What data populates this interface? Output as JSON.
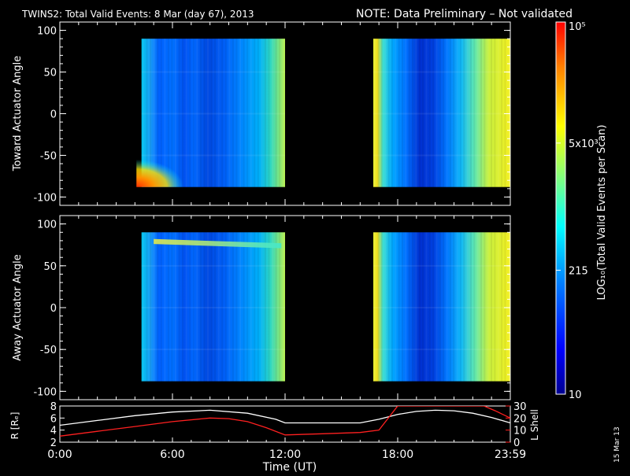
{
  "title": {
    "main": "TWINS2: Total Valid Events:  8 Mar (day  67), 2013",
    "note": "NOTE: Data Preliminary – Not validated",
    "note_color": "#ff2020"
  },
  "footer": {
    "date_stamp": "15 Mar 13"
  },
  "chart_data": [
    {
      "type": "heatmap",
      "name": "toward",
      "ylabel": "Toward Actuator Angle",
      "ylim": [
        -110,
        110
      ],
      "yticks": [
        -100,
        -50,
        0,
        50,
        100
      ],
      "xlim": [
        0,
        24
      ],
      "data_segments": [
        {
          "start_h": 4.35,
          "end_h": 12.0,
          "angle_range": [
            -88,
            90
          ]
        },
        {
          "start_h": 16.7,
          "end_h": 24.0,
          "angle_range": [
            -88,
            90
          ]
        }
      ],
      "features": [
        {
          "kind": "hot-corner",
          "near_h": 4.5,
          "near_angle": -85,
          "level": "high"
        }
      ]
    },
    {
      "type": "heatmap",
      "name": "away",
      "ylabel": "Away Actuator Angle",
      "ylim": [
        -110,
        110
      ],
      "yticks": [
        -100,
        -50,
        0,
        50,
        100
      ],
      "xlim": [
        0,
        24
      ],
      "data_segments": [
        {
          "start_h": 4.35,
          "end_h": 12.0,
          "angle_range": [
            -88,
            90
          ]
        },
        {
          "start_h": 16.7,
          "end_h": 24.0,
          "angle_range": [
            -88,
            90
          ]
        }
      ],
      "features": [
        {
          "kind": "band",
          "from_h": 5.0,
          "to_h": 11.8,
          "angle_from": 82,
          "angle_to": 75,
          "level": "medium-high"
        }
      ]
    },
    {
      "type": "line",
      "name": "orbit",
      "ylabel_left": "R [Rₑ]",
      "ylabel_right": "L Shell",
      "right_axis_color": "#ff2020",
      "ylim_left": [
        2,
        8
      ],
      "yticks_left": [
        2,
        4,
        6,
        8
      ],
      "ylim_right": [
        0,
        30
      ],
      "yticks_right": [
        0,
        10,
        20,
        30
      ],
      "series": [
        {
          "axis": "left",
          "color": "#ffffff",
          "x": [
            0,
            2,
            4,
            6,
            8,
            10,
            11.5,
            12,
            13,
            14,
            15,
            16,
            17,
            18,
            19,
            20,
            21,
            22,
            23,
            24
          ],
          "y": [
            4.8,
            5.6,
            6.4,
            7.0,
            7.3,
            6.8,
            5.8,
            5.2,
            5.2,
            5.2,
            5.2,
            5.2,
            5.8,
            6.6,
            7.1,
            7.3,
            7.2,
            6.8,
            6.1,
            5.2
          ]
        },
        {
          "axis": "right",
          "color": "#ff2020",
          "x": [
            0,
            2,
            4,
            6,
            8,
            9,
            10,
            11,
            12,
            14,
            16,
            17,
            18,
            22.6,
            23.2,
            24
          ],
          "y": [
            5,
            9,
            13,
            17,
            20,
            19.5,
            17,
            12,
            6,
            7,
            8,
            10,
            30,
            30,
            26,
            20
          ]
        }
      ]
    }
  ],
  "xaxis": {
    "label": "Time (UT)",
    "ticks": [
      {
        "h": 0,
        "label": "0:00"
      },
      {
        "h": 6,
        "label": "6:00"
      },
      {
        "h": 12,
        "label": "12:00"
      },
      {
        "h": 18,
        "label": "18:00"
      },
      {
        "h": 24,
        "label": "23:59"
      }
    ]
  },
  "colorbar": {
    "label": "LOG₁₀(Total Valid Events per Scan)",
    "range": [
      10,
      100000
    ],
    "ticks": [
      {
        "value": 10,
        "label": "10"
      },
      {
        "value": 215,
        "label": "215"
      },
      {
        "value": 5000,
        "label": "5x10³"
      },
      {
        "value": 100000,
        "label": "10⁵"
      }
    ],
    "colors": [
      "#00008f",
      "#0000ff",
      "#0080ff",
      "#00ffff",
      "#80ff80",
      "#ffff00",
      "#ff8000",
      "#ff0000"
    ]
  }
}
